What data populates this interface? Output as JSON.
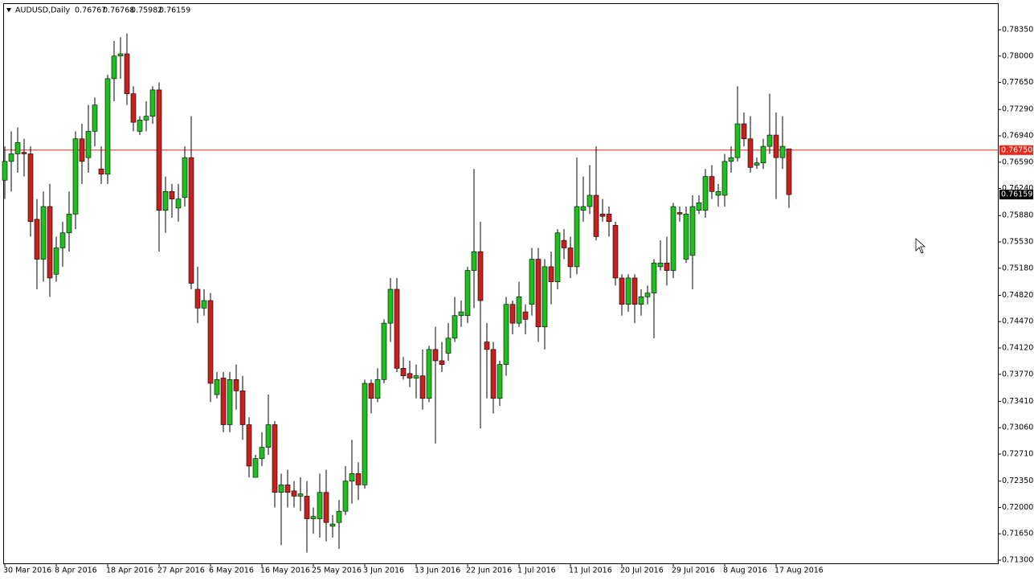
{
  "chart_data": {
    "type": "candlestick",
    "title": "AUDUSD,Daily",
    "categories": [
      "30 Mar 2016",
      null,
      null,
      null,
      null,
      null,
      null,
      null,
      "8 Apr 2016",
      null,
      null,
      null,
      null,
      null,
      null,
      null,
      "18 Apr 2016",
      null,
      null,
      null,
      null,
      null,
      null,
      null,
      "27 Apr 2016",
      null,
      null,
      null,
      null,
      null,
      null,
      null,
      "6 May 2016",
      null,
      null,
      null,
      null,
      null,
      null,
      null,
      "16 May 2016",
      null,
      null,
      null,
      null,
      null,
      null,
      null,
      "25 May 2016",
      null,
      null,
      null,
      null,
      null,
      null,
      null,
      "3 Jun 2016",
      null,
      null,
      null,
      null,
      null,
      null,
      null,
      "13 Jun 2016",
      null,
      null,
      null,
      null,
      null,
      null,
      null,
      "22 Jun 2016",
      null,
      null,
      null,
      null,
      null,
      null,
      null,
      "1 Jul 2016",
      null,
      null,
      null,
      null,
      null,
      null,
      null,
      "11 Jul 2016",
      null,
      null,
      null,
      null,
      null,
      null,
      null,
      "20 Jul 2016",
      null,
      null,
      null,
      null,
      null,
      null,
      null,
      "29 Jul 2016",
      null,
      null,
      null,
      null,
      null,
      null,
      null,
      "8 Aug 2016",
      null,
      null,
      null,
      null,
      null,
      null,
      null,
      "17 Aug 2016",
      null,
      null
    ],
    "open": [
      0.7635,
      0.766,
      0.767,
      0.7672,
      0.767,
      0.7583,
      0.753,
      0.76,
      0.751,
      0.7545,
      0.7565,
      0.759,
      0.769,
      0.7665,
      0.77,
      0.765,
      0.7643,
      0.777,
      0.78,
      0.7803,
      0.775,
      0.77,
      0.7715,
      0.772,
      0.7755,
      0.7595,
      0.762,
      0.7598,
      0.7612,
      0.7665,
      0.749,
      0.7465,
      0.7475,
      0.735,
      0.7372,
      0.731,
      0.737,
      0.7355,
      0.731,
      0.724,
      0.7265,
      0.728,
      0.731,
      0.722,
      0.723,
      0.7222,
      0.7215,
      0.7215,
      0.7185,
      0.7185,
      0.722,
      0.7175,
      0.718,
      0.7195,
      0.7235,
      0.7245,
      0.723,
      0.7365,
      0.7345,
      0.737,
      0.7445,
      0.749,
      0.7385,
      0.7378,
      0.7372,
      0.7375,
      0.7345,
      0.741,
      0.7395,
      0.7405,
      0.7425,
      0.7455,
      0.7455,
      0.7515,
      0.754,
      0.742,
      0.741,
      0.7345,
      0.739,
      0.747,
      0.7445,
      0.746,
      0.747,
      0.753,
      0.744,
      0.752,
      0.75,
      0.7555,
      0.7545,
      0.752,
      0.7595,
      0.76,
      0.7615,
      0.759,
      0.759,
      0.7575,
      0.7505,
      0.747,
      0.7505,
      0.747,
      0.748,
      0.7485,
      0.752,
      0.7525,
      0.7515,
      0.7592,
      0.753,
      0.7535,
      0.7595,
      0.7595,
      0.764,
      0.7615,
      0.7615,
      0.766,
      0.7665,
      0.771,
      0.769,
      0.7655,
      0.7658,
      0.768,
      0.7695,
      0.7665,
      0.76767
    ],
    "high": [
      0.768,
      0.77,
      0.7705,
      0.769,
      0.768,
      0.761,
      0.762,
      0.763,
      0.756,
      0.758,
      0.762,
      0.77,
      0.771,
      0.7735,
      0.7745,
      0.768,
      0.7775,
      0.782,
      0.7825,
      0.783,
      0.776,
      0.772,
      0.774,
      0.776,
      0.7765,
      0.764,
      0.763,
      0.763,
      0.768,
      0.772,
      0.752,
      0.749,
      0.7485,
      0.738,
      0.738,
      0.738,
      0.739,
      0.7375,
      0.732,
      0.727,
      0.73,
      0.735,
      0.7315,
      0.7245,
      0.725,
      0.7235,
      0.724,
      0.7235,
      0.72,
      0.7245,
      0.725,
      0.719,
      0.721,
      0.7255,
      0.729,
      0.726,
      0.737,
      0.737,
      0.7385,
      0.745,
      0.7505,
      0.7505,
      0.74,
      0.7395,
      0.739,
      0.741,
      0.7415,
      0.744,
      0.742,
      0.7445,
      0.748,
      0.7475,
      0.752,
      0.765,
      0.758,
      0.7445,
      0.742,
      0.7395,
      0.748,
      0.7475,
      0.75,
      0.747,
      0.7545,
      0.7545,
      0.753,
      0.754,
      0.757,
      0.757,
      0.756,
      0.7665,
      0.764,
      0.7655,
      0.768,
      0.761,
      0.76,
      0.758,
      0.751,
      0.751,
      0.751,
      0.749,
      0.7495,
      0.753,
      0.7555,
      0.756,
      0.7605,
      0.76,
      0.76,
      0.7615,
      0.7615,
      0.765,
      0.7655,
      0.763,
      0.767,
      0.768,
      0.776,
      0.7725,
      0.772,
      0.7665,
      0.769,
      0.775,
      0.7725,
      0.772,
      0.76768
    ],
    "low": [
      0.761,
      0.762,
      0.7645,
      0.764,
      0.756,
      0.749,
      0.75,
      0.748,
      0.75,
      0.752,
      0.754,
      0.757,
      0.763,
      0.7645,
      0.768,
      0.763,
      0.763,
      0.774,
      0.777,
      0.7735,
      0.77,
      0.7695,
      0.77,
      0.771,
      0.754,
      0.7565,
      0.7585,
      0.758,
      0.76,
      0.749,
      0.7445,
      0.7455,
      0.734,
      0.7345,
      0.73,
      0.73,
      0.733,
      0.729,
      0.724,
      0.724,
      0.7255,
      0.727,
      0.72,
      0.715,
      0.72,
      0.72,
      0.7195,
      0.714,
      0.7165,
      0.716,
      0.7155,
      0.716,
      0.7145,
      0.719,
      0.7205,
      0.721,
      0.7225,
      0.7325,
      0.734,
      0.7365,
      0.742,
      0.738,
      0.737,
      0.736,
      0.7345,
      0.733,
      0.734,
      0.7285,
      0.738,
      0.7395,
      0.742,
      0.744,
      0.7445,
      0.7465,
      0.7305,
      0.7345,
      0.7325,
      0.7335,
      0.7375,
      0.743,
      0.744,
      0.743,
      0.7455,
      0.742,
      0.741,
      0.747,
      0.749,
      0.753,
      0.7505,
      0.751,
      0.758,
      0.759,
      0.7555,
      0.758,
      0.756,
      0.7495,
      0.7455,
      0.746,
      0.7445,
      0.7455,
      0.747,
      0.7425,
      0.7515,
      0.7495,
      0.7505,
      0.758,
      0.7525,
      0.749,
      0.759,
      0.7585,
      0.761,
      0.76,
      0.76,
      0.7645,
      0.766,
      0.768,
      0.7645,
      0.765,
      0.765,
      0.767,
      0.761,
      0.765,
      0.75982
    ],
    "close": [
      0.766,
      0.767,
      0.7685,
      0.767,
      0.758,
      0.753,
      0.76,
      0.7505,
      0.7545,
      0.7565,
      0.759,
      0.769,
      0.766,
      0.77,
      0.7735,
      0.7643,
      0.777,
      0.78,
      0.7803,
      0.775,
      0.7712,
      0.7715,
      0.772,
      0.7755,
      0.7595,
      0.762,
      0.761,
      0.761,
      0.7665,
      0.7498,
      0.7465,
      0.7475,
      0.7365,
      0.737,
      0.731,
      0.737,
      0.7355,
      0.731,
      0.7255,
      0.7265,
      0.728,
      0.731,
      0.722,
      0.723,
      0.722,
      0.7215,
      0.7218,
      0.7185,
      0.7188,
      0.722,
      0.718,
      0.7178,
      0.7195,
      0.7235,
      0.7245,
      0.723,
      0.7365,
      0.7345,
      0.737,
      0.7445,
      0.749,
      0.7385,
      0.7375,
      0.7372,
      0.7375,
      0.7345,
      0.741,
      0.7395,
      0.739,
      0.7425,
      0.7455,
      0.746,
      0.7515,
      0.754,
      0.7475,
      0.741,
      0.7345,
      0.739,
      0.747,
      0.7445,
      0.748,
      0.745,
      0.753,
      0.744,
      0.752,
      0.75,
      0.7565,
      0.7545,
      0.752,
      0.76,
      0.76,
      0.7615,
      0.756,
      0.7587,
      0.758,
      0.7505,
      0.747,
      0.7505,
      0.747,
      0.748,
      0.7485,
      0.7525,
      0.7525,
      0.7515,
      0.76,
      0.759,
      0.759,
      0.76,
      0.7605,
      0.764,
      0.762,
      0.762,
      0.766,
      0.7665,
      0.771,
      0.769,
      0.7652,
      0.7658,
      0.768,
      0.7695,
      0.7665,
      0.768,
      0.76159
    ],
    "up_color": "#1fbf1f",
    "down_color": "#c8201e",
    "bid_line": {
      "value": 0.7675,
      "label": "0.76750",
      "color": "#e8291c"
    },
    "ylim": [
      0.71268,
      0.78692
    ],
    "yticks": [
      {
        "value": 0.7835,
        "label": "0.78350"
      },
      {
        "value": 0.78,
        "label": "0.78000"
      },
      {
        "value": 0.7765,
        "label": "0.77650"
      },
      {
        "value": 0.7729,
        "label": "0.77290"
      },
      {
        "value": 0.7694,
        "label": "0.76940"
      },
      {
        "value": 0.7659,
        "label": "0.76590"
      },
      {
        "value": 0.7624,
        "label": "0.76240"
      },
      {
        "value": 0.7588,
        "label": "0.75880"
      },
      {
        "value": 0.7553,
        "label": "0.75530"
      },
      {
        "value": 0.7518,
        "label": "0.75180"
      },
      {
        "value": 0.7482,
        "label": "0.74820"
      },
      {
        "value": 0.7447,
        "label": "0.74470"
      },
      {
        "value": 0.7412,
        "label": "0.74120"
      },
      {
        "value": 0.7377,
        "label": "0.73770"
      },
      {
        "value": 0.7341,
        "label": "0.73410"
      },
      {
        "value": 0.7306,
        "label": "0.73060"
      },
      {
        "value": 0.7271,
        "label": "0.72710"
      },
      {
        "value": 0.7235,
        "label": "0.72350"
      },
      {
        "value": 0.72,
        "label": "0.72000"
      },
      {
        "value": 0.7165,
        "label": "0.71650"
      },
      {
        "value": 0.713,
        "label": "0.71300"
      }
    ],
    "grid": false
  }
}
